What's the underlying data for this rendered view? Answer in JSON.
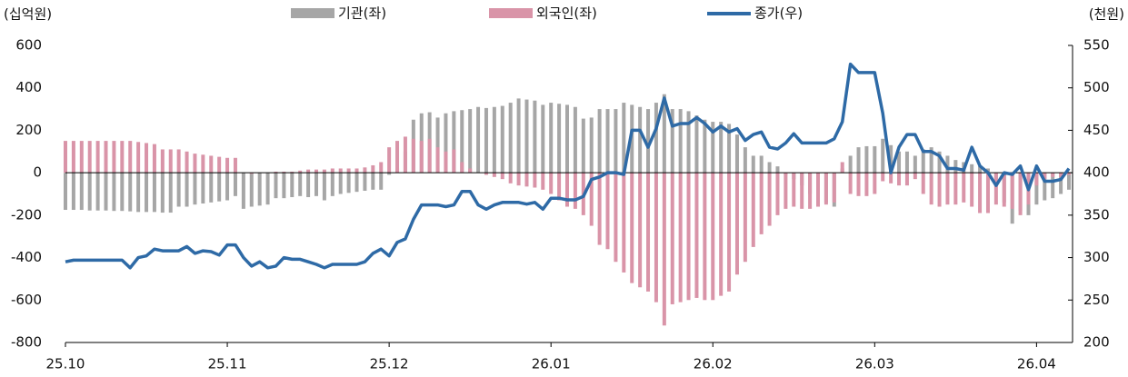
{
  "chart_data": {
    "type": "bar-line",
    "y_label": "(십억원)",
    "y2_label": "(천원)",
    "categories": [
      "25.10",
      null,
      null,
      null,
      null,
      null,
      null,
      null,
      null,
      null,
      null,
      null,
      null,
      null,
      null,
      null,
      null,
      null,
      null,
      null,
      "25.11",
      null,
      null,
      null,
      null,
      null,
      null,
      null,
      null,
      null,
      null,
      null,
      null,
      null,
      null,
      null,
      null,
      null,
      null,
      null,
      "25.12",
      null,
      null,
      null,
      null,
      null,
      null,
      null,
      null,
      null,
      null,
      null,
      null,
      null,
      null,
      null,
      null,
      null,
      null,
      null,
      "26.01",
      null,
      null,
      null,
      null,
      null,
      null,
      null,
      null,
      null,
      null,
      null,
      null,
      null,
      null,
      null,
      null,
      null,
      null,
      null,
      "26.02",
      null,
      null,
      null,
      null,
      null,
      null,
      null,
      null,
      null,
      null,
      null,
      null,
      null,
      null,
      null,
      null,
      null,
      null,
      null,
      "26.03",
      null,
      null,
      null,
      null,
      null,
      null,
      null,
      null,
      null,
      null,
      null,
      null,
      null,
      null,
      null,
      null,
      null,
      null,
      null,
      "26.04",
      null,
      null,
      null,
      null
    ],
    "series": [
      {
        "name": "기관(좌)",
        "color": "#a6a6a6",
        "kind": "bar",
        "values": [
          -175,
          -175,
          -175,
          -178,
          -178,
          -178,
          -180,
          -180,
          -182,
          -185,
          -185,
          -185,
          -188,
          -188,
          -160,
          -160,
          -150,
          -145,
          -140,
          -135,
          -130,
          -110,
          -170,
          -160,
          -155,
          -150,
          -120,
          -120,
          -115,
          -110,
          -115,
          -110,
          -130,
          -110,
          -100,
          -95,
          -90,
          -85,
          -80,
          -80,
          -10,
          20,
          100,
          250,
          280,
          285,
          260,
          280,
          290,
          295,
          300,
          310,
          305,
          310,
          315,
          330,
          350,
          345,
          340,
          320,
          330,
          325,
          320,
          310,
          255,
          260,
          300,
          300,
          300,
          330,
          320,
          310,
          300,
          330,
          370,
          300,
          300,
          290,
          270,
          250,
          240,
          240,
          230,
          180,
          120,
          80,
          80,
          50,
          30,
          -10,
          -30,
          -60,
          -100,
          -140,
          -140,
          -160,
          20,
          80,
          120,
          125,
          125,
          160,
          130,
          100,
          100,
          80,
          110,
          120,
          100,
          80,
          60,
          50,
          40,
          30,
          20,
          -60,
          -140,
          -240,
          -180,
          -200,
          -150,
          -130,
          -120,
          -100,
          -80
        ]
      },
      {
        "name": "외국인(좌)",
        "color": "#d994a8",
        "kind": "bar",
        "values": [
          150,
          150,
          150,
          150,
          150,
          150,
          150,
          150,
          150,
          145,
          140,
          135,
          110,
          110,
          110,
          100,
          90,
          85,
          80,
          75,
          70,
          70,
          0,
          -5,
          0,
          0,
          5,
          5,
          5,
          10,
          15,
          15,
          15,
          20,
          20,
          20,
          20,
          25,
          35,
          50,
          120,
          150,
          170,
          160,
          150,
          160,
          120,
          100,
          110,
          50,
          20,
          0,
          -10,
          -20,
          -30,
          -50,
          -60,
          -65,
          -70,
          -80,
          -100,
          -130,
          -160,
          -170,
          -200,
          -250,
          -340,
          -360,
          -420,
          -470,
          -520,
          -540,
          -560,
          -610,
          -720,
          -620,
          -610,
          -600,
          -590,
          -600,
          -600,
          -580,
          -560,
          -480,
          -420,
          -350,
          -290,
          -250,
          -200,
          -170,
          -160,
          -170,
          -170,
          -160,
          -150,
          -140,
          50,
          -100,
          -110,
          -110,
          -100,
          -40,
          -50,
          -60,
          -60,
          -30,
          -100,
          -150,
          -160,
          -150,
          -150,
          -140,
          -160,
          -190,
          -190,
          -150,
          -160,
          -170,
          -200,
          -150,
          -60,
          -30,
          -20,
          -20,
          -10
        ]
      },
      {
        "name": "종가(우)",
        "color": "#2e6aa6",
        "kind": "line",
        "axis": "y2",
        "values": [
          295,
          297,
          297,
          297,
          297,
          297,
          297,
          297,
          288,
          300,
          302,
          310,
          308,
          308,
          308,
          313,
          305,
          308,
          307,
          303,
          315,
          315,
          300,
          290,
          295,
          288,
          290,
          300,
          298,
          298,
          295,
          292,
          288,
          292,
          292,
          292,
          292,
          295,
          305,
          310,
          302,
          318,
          322,
          345,
          362,
          362,
          362,
          360,
          362,
          378,
          378,
          362,
          357,
          362,
          365,
          365,
          365,
          363,
          365,
          357,
          370,
          370,
          368,
          368,
          372,
          392,
          395,
          400,
          400,
          398,
          450,
          450,
          430,
          452,
          488,
          455,
          458,
          458,
          465,
          458,
          448,
          455,
          448,
          452,
          438,
          445,
          448,
          430,
          428,
          435,
          446,
          435,
          435,
          435,
          435,
          440,
          460,
          528,
          518,
          518,
          518,
          470,
          400,
          430,
          445,
          445,
          425,
          425,
          420,
          405,
          405,
          403,
          430,
          408,
          400,
          385,
          400,
          398,
          408,
          380,
          408,
          390,
          390,
          392,
          405
        ]
      }
    ],
    "ylim": [
      -800,
      600
    ],
    "yticks": [
      -800,
      -600,
      -400,
      -200,
      0,
      200,
      400,
      600
    ],
    "y2lim": [
      200,
      550
    ],
    "y2ticks": [
      200,
      250,
      300,
      350,
      400,
      450,
      500,
      550
    ]
  }
}
